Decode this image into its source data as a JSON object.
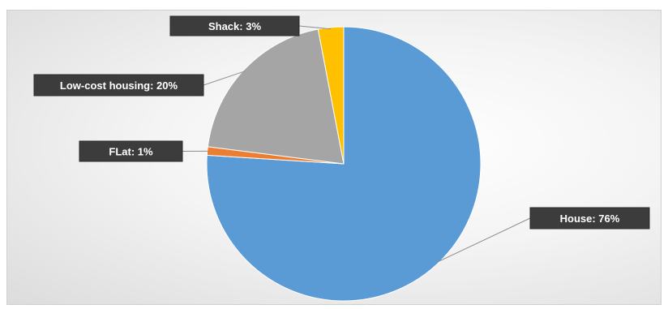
{
  "chart_data": {
    "type": "pie",
    "title": "",
    "slices": [
      {
        "label": "House",
        "value": 76,
        "display": "House: 76%",
        "color": "#5B9BD5"
      },
      {
        "label": "FLat",
        "value": 1,
        "display": "FLat: 1%",
        "color": "#ED7D31"
      },
      {
        "label": "Low-cost housing",
        "value": 20,
        "display": "Low-cost housing: 20%",
        "color": "#A5A5A5"
      },
      {
        "label": "Shack",
        "value": 3,
        "display": "Shack: 3%",
        "color": "#FFC000"
      }
    ],
    "legend": "none",
    "data_labels": "callout"
  }
}
